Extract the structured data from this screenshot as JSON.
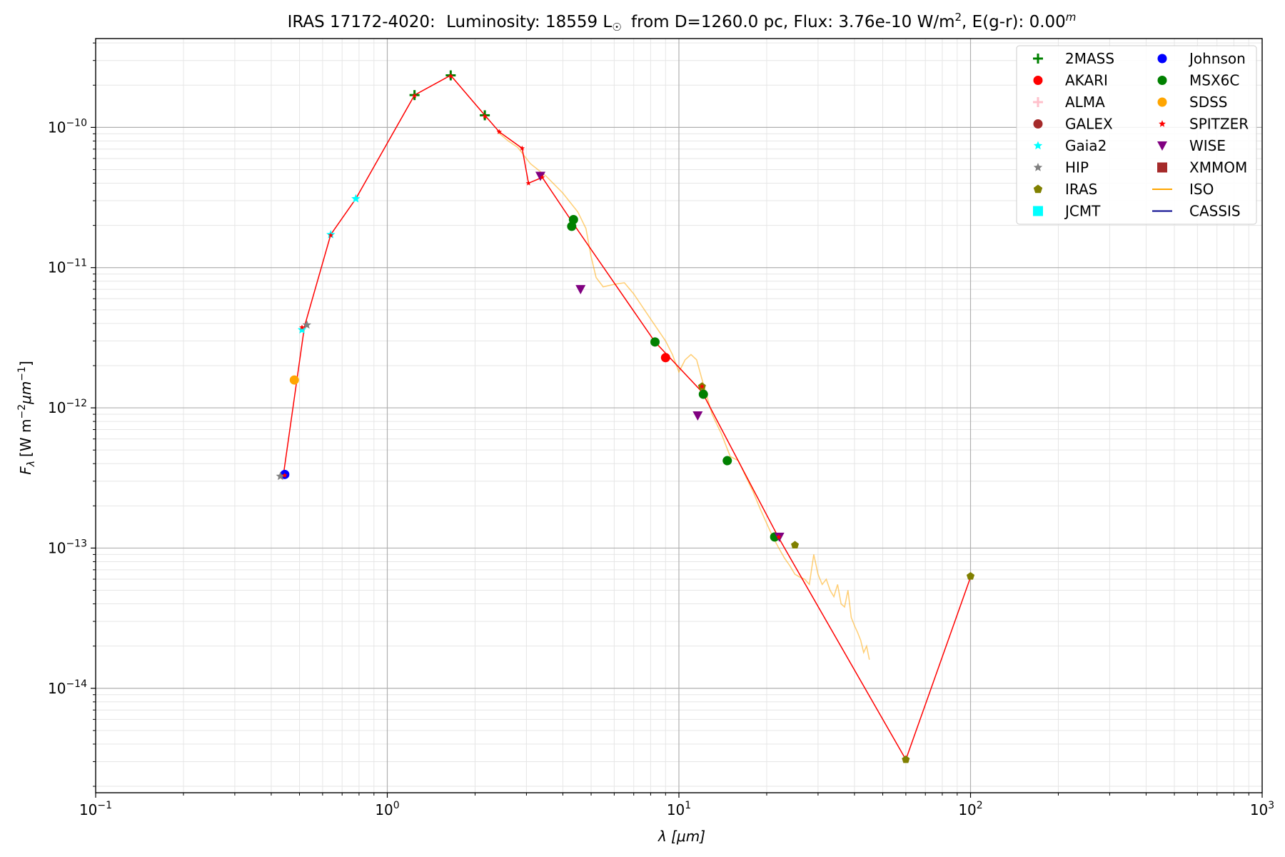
{
  "chart_data": {
    "type": "scatter",
    "title": {
      "object": "IRAS 17172-4020:",
      "lum_prefix": "Luminosity: 18559 L",
      "sun_symbol": "☉",
      "dist_part": "from D=1260.0 pc, Flux: 3.76e-10 W/m",
      "flux_sup": "2",
      "ext_part": ", E(g-r): 0.00",
      "ext_sup": "m"
    },
    "xlabel": "λ [μm]",
    "ylabel": "Fλ [W m⁻²μm⁻¹]",
    "ylabel_parts": {
      "f": "F",
      "lambda": "λ",
      "units": "[W m",
      "u_sup": "−2",
      "mum": "μm",
      "mum_sup": "−1",
      "close": "]"
    },
    "x_scale": "log",
    "y_scale": "log",
    "xlim": [
      0.1,
      1000
    ],
    "ylim": [
      1.8e-15,
      4.3e-10
    ],
    "x_ticks": [
      {
        "value": 0.1,
        "base": "10",
        "exp": "−1"
      },
      {
        "value": 1,
        "base": "10",
        "exp": "0"
      },
      {
        "value": 10,
        "base": "10",
        "exp": "1"
      },
      {
        "value": 100,
        "base": "10",
        "exp": "2"
      },
      {
        "value": 1000,
        "base": "10",
        "exp": "3"
      }
    ],
    "y_ticks": [
      {
        "value": 1e-14,
        "base": "10",
        "exp": "−14"
      },
      {
        "value": 1e-13,
        "base": "10",
        "exp": "−13"
      },
      {
        "value": 1e-12,
        "base": "10",
        "exp": "−12"
      },
      {
        "value": 1e-11,
        "base": "10",
        "exp": "−11"
      },
      {
        "value": 1e-10,
        "base": "10",
        "exp": "−10"
      }
    ],
    "grid": true,
    "legend_position": "top-right",
    "model_line": {
      "color": "#ff0000",
      "points": [
        [
          0.44,
          3.3e-13
        ],
        [
          0.52,
          3.8e-12
        ],
        [
          0.64,
          1.72e-11
        ],
        [
          0.78,
          3.1e-11
        ],
        [
          1.24,
          1.7e-10
        ],
        [
          1.65,
          2.35e-10
        ],
        [
          2.16,
          1.22e-10
        ],
        [
          2.42,
          9.3e-11
        ],
        [
          2.9,
          7.1e-11
        ],
        [
          3.05,
          4e-11
        ],
        [
          3.4,
          4.4e-11
        ],
        [
          4.35,
          2.05e-11
        ],
        [
          8.28,
          2.95e-12
        ],
        [
          12.0,
          1.3e-12
        ],
        [
          22.0,
          1.18e-13
        ],
        [
          60.0,
          3.1e-15
        ],
        [
          100.0,
          6.2e-14
        ]
      ]
    },
    "series": [
      {
        "name": "2MASS",
        "marker": "plus",
        "color": "#008000",
        "points": [
          [
            1.24,
            1.7e-10
          ],
          [
            1.65,
            2.35e-10
          ],
          [
            2.16,
            1.22e-10
          ]
        ]
      },
      {
        "name": "AKARI",
        "marker": "circle",
        "color": "#ff0000",
        "points": [
          [
            9.0,
            2.28e-12
          ]
        ]
      },
      {
        "name": "ALMA",
        "marker": "plus",
        "color": "#ffc0cb",
        "points": []
      },
      {
        "name": "GALEX",
        "marker": "circle",
        "color": "#a52a2a",
        "points": []
      },
      {
        "name": "Gaia2",
        "marker": "star",
        "color": "#00ffff",
        "points": [
          [
            0.51,
            3.6e-12
          ],
          [
            0.64,
            1.72e-11
          ],
          [
            0.78,
            3.1e-11
          ]
        ]
      },
      {
        "name": "HIP",
        "marker": "star",
        "color": "#808080",
        "points": [
          [
            0.43,
            3.25e-13
          ],
          [
            0.53,
            3.9e-12
          ]
        ]
      },
      {
        "name": "IRAS",
        "marker": "pentagon",
        "color": "#808000",
        "points": [
          [
            12.0,
            1.42e-12
          ],
          [
            25.0,
            1.05e-13
          ],
          [
            60.0,
            3.1e-15
          ],
          [
            100.0,
            6.3e-14
          ]
        ]
      },
      {
        "name": "JCMT",
        "marker": "square",
        "color": "#00ffff",
        "points": []
      },
      {
        "name": "Johnson",
        "marker": "circle",
        "color": "#0000ff",
        "points": [
          [
            0.445,
            3.35e-13
          ]
        ]
      },
      {
        "name": "MSX6C",
        "marker": "circle",
        "color": "#008000",
        "points": [
          [
            4.29,
            1.97e-11
          ],
          [
            4.35,
            2.2e-11
          ],
          [
            8.28,
            2.95e-12
          ],
          [
            12.13,
            1.25e-12
          ],
          [
            14.65,
            4.2e-13
          ],
          [
            21.3,
            1.2e-13
          ]
        ]
      },
      {
        "name": "SDSS",
        "marker": "circle",
        "color": "#ffa500",
        "points": [
          [
            0.48,
            1.58e-12
          ]
        ]
      },
      {
        "name": "SPITZER",
        "marker": "star",
        "color": "#ff0000",
        "points": [
          [
            0.445,
            3.3e-13
          ],
          [
            0.51,
            3.75e-12
          ],
          [
            0.64,
            1.7e-11
          ],
          [
            1.24,
            1.68e-10
          ],
          [
            1.65,
            2.32e-10
          ],
          [
            2.16,
            1.2e-10
          ],
          [
            2.42,
            9.3e-11
          ],
          [
            2.9,
            7.1e-11
          ],
          [
            3.05,
            4e-11
          ],
          [
            3.4,
            4.4e-11
          ],
          [
            12.0,
            1.42e-12
          ],
          [
            22.0,
            1.2e-13
          ]
        ]
      },
      {
        "name": "WISE",
        "marker": "triangle-down",
        "color": "#800080",
        "points": [
          [
            3.35,
            4.5e-11
          ],
          [
            4.6,
            7e-12
          ],
          [
            11.6,
            8.8e-13
          ],
          [
            22.1,
            1.2e-13
          ]
        ]
      },
      {
        "name": "XMMOM",
        "marker": "square",
        "color": "#a52a2a",
        "points": []
      },
      {
        "name": "ISO",
        "marker": "line",
        "color": "#ffa500",
        "points": [
          [
            2.4,
            9.2e-11
          ],
          [
            2.6,
            8e-11
          ],
          [
            2.8,
            7.2e-11
          ],
          [
            3.1,
            5.5e-11
          ],
          [
            3.5,
            4.5e-11
          ],
          [
            4.0,
            3.4e-11
          ],
          [
            4.5,
            2.5e-11
          ],
          [
            4.8,
            1.9e-11
          ],
          [
            5.0,
            1.2e-11
          ],
          [
            5.2,
            8.5e-12
          ],
          [
            5.5,
            7.3e-12
          ],
          [
            6.0,
            7.6e-12
          ],
          [
            6.5,
            7.8e-12
          ],
          [
            7.0,
            6.5e-12
          ],
          [
            8.0,
            4.3e-12
          ],
          [
            9.0,
            3e-12
          ],
          [
            9.5,
            2.4e-12
          ],
          [
            10.0,
            1.8e-12
          ],
          [
            10.5,
            2.2e-12
          ],
          [
            11.0,
            2.4e-12
          ],
          [
            11.5,
            2.2e-12
          ],
          [
            12.0,
            1.6e-12
          ],
          [
            13.0,
            9e-13
          ],
          [
            14.0,
            6.5e-13
          ],
          [
            15.0,
            4.5e-13
          ],
          [
            16.0,
            4.2e-13
          ],
          [
            17.0,
            3.2e-13
          ],
          [
            18.0,
            2.5e-13
          ],
          [
            19.0,
            1.9e-13
          ],
          [
            20.0,
            1.5e-13
          ],
          [
            21.0,
            1.2e-13
          ],
          [
            22.0,
            1e-13
          ],
          [
            23.0,
            8.5e-14
          ],
          [
            24.0,
            7.5e-14
          ],
          [
            25.0,
            6.5e-14
          ],
          [
            26.0,
            6.2e-14
          ],
          [
            27.0,
            6e-14
          ],
          [
            28.0,
            5.5e-14
          ],
          [
            29.0,
            9e-14
          ],
          [
            30.0,
            6.5e-14
          ],
          [
            31.0,
            5.5e-14
          ],
          [
            32.0,
            6e-14
          ],
          [
            33.0,
            5e-14
          ],
          [
            34.0,
            4.5e-14
          ],
          [
            35.0,
            5.5e-14
          ],
          [
            36.0,
            4e-14
          ],
          [
            37.0,
            3.8e-14
          ],
          [
            38.0,
            5e-14
          ],
          [
            39.0,
            3.2e-14
          ],
          [
            40.0,
            2.8e-14
          ],
          [
            41.0,
            2.5e-14
          ],
          [
            42.0,
            2.2e-14
          ],
          [
            43.0,
            1.8e-14
          ],
          [
            44.0,
            2e-14
          ],
          [
            45.0,
            1.6e-14
          ]
        ]
      },
      {
        "name": "CASSIS",
        "marker": "line",
        "color": "#00008b",
        "points": []
      }
    ]
  }
}
